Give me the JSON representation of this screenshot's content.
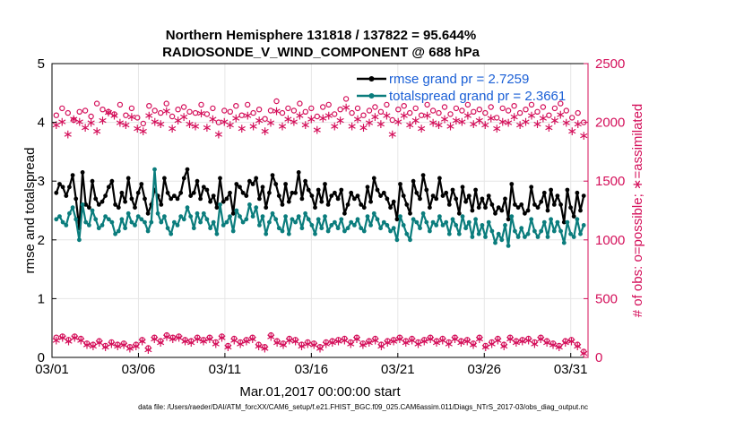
{
  "chart_data": {
    "type": "line",
    "title_line1": "Northern Hemisphere 131818 / 137822 = 95.644%",
    "title_line2": "RADIOSONDE_V_WIND_COMPONENT @ 688 hPa",
    "xlabel": "Mar.01,2017 00:00:00 start",
    "ylabel_left": "rmse and totalspread",
    "ylabel_right": "# of obs: o=possible; ∗=assimilated",
    "footer": "data file: /Users/raeder/DAI/ATM_forcXX/CAM6_setup/f.e21.FHIST_BGC.f09_025.CAM6assim.011/Diags_NTrS_2017-03/obs_diag_output.nc",
    "x_ticks": [
      "03/01",
      "03/06",
      "03/11",
      "03/16",
      "03/21",
      "03/26",
      "03/31"
    ],
    "xlim": [
      1,
      32
    ],
    "ylim_left": [
      0,
      5
    ],
    "ylim_right": [
      0,
      2500
    ],
    "yticks_left": [
      "0",
      "1",
      "2",
      "3",
      "4",
      "5"
    ],
    "yticks_right": [
      "0",
      "500",
      "1000",
      "1500",
      "2000",
      "2500"
    ],
    "colors": {
      "rmse": "#000000",
      "spread": "#0b7d7d",
      "obs": "#d40f5a",
      "legend_text": "#1a5fd6",
      "axis": "#000000"
    },
    "legend": [
      "rmse grand pr = 2.7259",
      "totalspread grand pr = 2.3661"
    ],
    "series": [
      {
        "name": "rmse",
        "axis": "left",
        "values": [
          2.8,
          2.95,
          2.9,
          2.75,
          2.9,
          3.1,
          2.7,
          2.2,
          3.15,
          2.6,
          2.55,
          3.0,
          2.7,
          2.6,
          2.65,
          2.75,
          2.9,
          3.0,
          2.6,
          2.55,
          2.8,
          2.65,
          3.05,
          2.7,
          2.55,
          2.8,
          2.95,
          2.7,
          2.45,
          2.6,
          2.85,
          2.75,
          2.6,
          3.05,
          2.8,
          2.7,
          2.75,
          2.7,
          2.8,
          3.05,
          3.2,
          2.75,
          2.8,
          3.0,
          2.7,
          2.9,
          2.85,
          2.65,
          2.75,
          2.55,
          3.05,
          2.65,
          2.7,
          2.8,
          2.45,
          2.95,
          2.9,
          2.8,
          2.75,
          3.0,
          2.95,
          3.05,
          2.7,
          2.9,
          2.55,
          2.8,
          3.1,
          2.95,
          2.75,
          2.6,
          2.95,
          2.65,
          2.8,
          2.8,
          3.15,
          2.7,
          3.0,
          2.85,
          2.75,
          2.55,
          2.85,
          2.65,
          2.95,
          2.6,
          2.75,
          2.8,
          2.7,
          2.85,
          2.45,
          2.6,
          2.8,
          2.7,
          2.75,
          2.6,
          2.55,
          2.9,
          2.65,
          3.05,
          2.85,
          2.75,
          2.8,
          2.7,
          2.55,
          2.65,
          2.35,
          2.95,
          2.75,
          2.6,
          2.45,
          3.0,
          2.8,
          2.7,
          3.1,
          2.85,
          2.55,
          2.75,
          2.7,
          3.05,
          2.75,
          2.8,
          2.6,
          2.85,
          2.7,
          2.45,
          2.9,
          2.65,
          2.75,
          2.5,
          2.85,
          2.55,
          2.7,
          2.55,
          2.75,
          2.6,
          2.45,
          2.55,
          2.5,
          2.7,
          2.35,
          2.95,
          2.6,
          2.55,
          2.6,
          2.45,
          2.5,
          2.9,
          2.6,
          2.55,
          2.65,
          2.8,
          2.5,
          2.85,
          2.6,
          2.75,
          2.6,
          2.3,
          2.85,
          2.55,
          2.4,
          2.8,
          2.5,
          2.75
        ]
      },
      {
        "name": "totalspread",
        "axis": "left",
        "values": [
          2.35,
          2.4,
          2.3,
          2.25,
          2.45,
          2.55,
          2.35,
          2.0,
          2.6,
          2.3,
          2.25,
          2.5,
          2.35,
          2.2,
          2.25,
          2.4,
          2.35,
          2.3,
          2.1,
          2.15,
          2.35,
          2.2,
          2.45,
          2.3,
          2.25,
          2.4,
          2.35,
          2.3,
          2.15,
          2.3,
          3.2,
          2.45,
          2.3,
          2.4,
          2.2,
          2.1,
          2.3,
          2.25,
          2.4,
          2.35,
          2.55,
          2.4,
          2.2,
          2.45,
          2.3,
          2.45,
          2.35,
          2.2,
          2.3,
          2.1,
          2.6,
          2.25,
          2.3,
          2.4,
          2.15,
          2.5,
          2.4,
          2.3,
          2.35,
          2.6,
          2.4,
          2.55,
          2.25,
          2.4,
          2.1,
          2.3,
          2.45,
          2.35,
          2.2,
          2.15,
          2.4,
          2.1,
          2.35,
          2.3,
          2.4,
          2.2,
          2.45,
          2.35,
          2.25,
          2.1,
          2.35,
          2.2,
          2.4,
          2.15,
          2.25,
          2.3,
          2.2,
          2.35,
          2.15,
          2.2,
          2.3,
          2.25,
          2.35,
          2.2,
          2.15,
          2.4,
          2.25,
          2.45,
          2.35,
          2.2,
          2.3,
          2.25,
          2.15,
          2.2,
          2.0,
          2.4,
          2.25,
          2.1,
          2.0,
          2.35,
          2.3,
          2.2,
          2.45,
          2.3,
          2.15,
          2.3,
          2.25,
          2.4,
          2.25,
          2.3,
          2.1,
          2.35,
          2.25,
          2.1,
          2.4,
          2.2,
          2.3,
          2.05,
          2.35,
          2.1,
          2.25,
          2.05,
          2.3,
          2.15,
          1.95,
          2.1,
          2.0,
          2.25,
          1.9,
          2.4,
          2.15,
          2.05,
          2.2,
          2.05,
          2.1,
          2.35,
          2.15,
          2.05,
          2.15,
          2.3,
          2.05,
          2.35,
          2.15,
          2.3,
          2.15,
          1.95,
          2.3,
          2.1,
          2.05,
          2.35,
          2.1,
          2.25
        ]
      },
      {
        "name": "possible",
        "axis": "right",
        "values": [
          2060,
          2120,
          2080,
          2020,
          2090,
          2100,
          2050,
          2160,
          2110,
          2090,
          2070,
          2150,
          2060,
          2120,
          2040,
          1990,
          2140,
          2100,
          2080,
          2160,
          2050,
          2110,
          2130,
          2090,
          2080,
          2150,
          2070,
          2120,
          2000,
          2100,
          2090,
          2140,
          2060,
          2150,
          2080,
          2110,
          2030,
          2100,
          2180,
          2080,
          2120,
          2100,
          2160,
          2090,
          2120,
          2050,
          2130,
          2150,
          2070,
          2110,
          2200,
          2080,
          2120,
          2060,
          2100,
          2130,
          2090,
          2150,
          2020,
          2110,
          2140,
          2080,
          2120,
          2060,
          2150,
          2100,
          2080,
          2130,
          2070,
          2120,
          2100,
          2150,
          2090,
          2110,
          2080,
          2130,
          2040,
          2120,
          2100,
          2140,
          2080,
          2110,
          2150,
          2090,
          2130,
          2060,
          2120,
          2160,
          2100,
          2040,
          2080,
          2000
        ]
      },
      {
        "name": "assimilated",
        "axis": "right",
        "values": [
          1980,
          2010,
          1900,
          2030,
          2010,
          1960,
          2000,
          1930,
          2020,
          2090,
          2060,
          2000,
          1980,
          2050,
          1950,
          1930,
          2060,
          2010,
          1990,
          2100,
          1950,
          2020,
          2050,
          1990,
          1970,
          2080,
          1960,
          2030,
          1900,
          2010,
          1980,
          2040,
          1950,
          2060,
          1970,
          2020,
          1930,
          2000,
          2100,
          1970,
          2030,
          2010,
          2060,
          1980,
          2030,
          1940,
          2040,
          2060,
          1970,
          2020,
          2130,
          1970,
          2030,
          1960,
          2000,
          2050,
          1990,
          2060,
          1900,
          2010,
          2060,
          1980,
          2020,
          1950,
          2060,
          2000,
          1980,
          2030,
          1970,
          2020,
          2010,
          2060,
          1990,
          2020,
          1980,
          2040,
          1950,
          2010,
          2000,
          2050,
          1980,
          2010,
          2060,
          1990,
          2040,
          1960,
          2020,
          2070,
          2000,
          1930,
          1990,
          1890
        ]
      },
      {
        "name": "possible_low",
        "axis": "right",
        "values": [
          170,
          180,
          150,
          180,
          160,
          120,
          110,
          140,
          100,
          130,
          110,
          120,
          90,
          110,
          150,
          80,
          170,
          140,
          190,
          170,
          180,
          150,
          140,
          170,
          150,
          170,
          130,
          180,
          100,
          160,
          130,
          150,
          170,
          110,
          90,
          190,
          140,
          120,
          160,
          150,
          110,
          130,
          120,
          90,
          130,
          140,
          150,
          160,
          130,
          170,
          120,
          140,
          160,
          110,
          140,
          150,
          170,
          140,
          160,
          130,
          150,
          170,
          140,
          160,
          130,
          170,
          140,
          150,
          120,
          170,
          100,
          130,
          160,
          110,
          170,
          140,
          150,
          160,
          130,
          170,
          140,
          120,
          100,
          140,
          150,
          110,
          50
        ]
      },
      {
        "name": "assimilated_low",
        "axis": "right",
        "values": [
          150,
          170,
          140,
          170,
          150,
          110,
          100,
          130,
          90,
          120,
          100,
          110,
          80,
          100,
          140,
          70,
          160,
          130,
          180,
          160,
          170,
          140,
          130,
          160,
          140,
          160,
          120,
          170,
          90,
          150,
          120,
          140,
          160,
          100,
          80,
          180,
          130,
          110,
          150,
          140,
          100,
          120,
          110,
          80,
          120,
          130,
          140,
          150,
          120,
          160,
          110,
          130,
          150,
          100,
          130,
          140,
          160,
          130,
          150,
          120,
          140,
          160,
          130,
          150,
          120,
          160,
          130,
          140,
          110,
          160,
          90,
          120,
          150,
          100,
          160,
          130,
          140,
          150,
          120,
          160,
          130,
          110,
          90,
          130,
          140,
          100,
          40
        ]
      }
    ]
  }
}
